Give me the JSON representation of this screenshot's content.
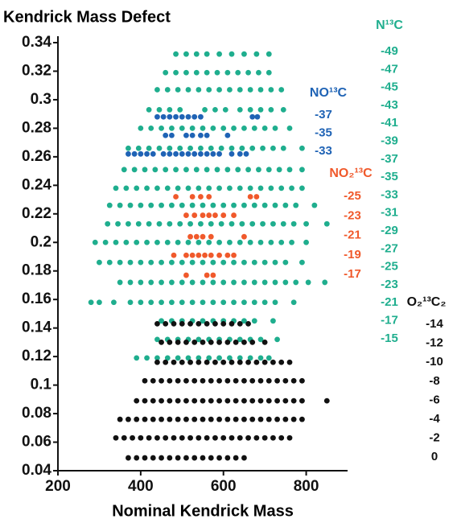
{
  "chart_data": {
    "type": "scatter",
    "title": "Kendrick Mass Defect",
    "x_label": "Nominal Kendrick Mass",
    "xlim": [
      200,
      900
    ],
    "ylim": [
      0.04,
      0.34
    ],
    "xticks": [
      200,
      400,
      600,
      800
    ],
    "yticks": [
      0.04,
      0.06,
      0.08,
      0.1,
      0.12,
      0.14,
      0.16,
      0.18,
      0.2,
      0.22,
      0.24,
      0.26,
      0.28,
      0.3,
      0.32,
      0.34
    ],
    "series": [
      {
        "name": "N¹³C",
        "color": "#1fae8e",
        "rows": [
          {
            "y": 0.332,
            "x": [
              485,
              510,
              535,
              560,
              590,
              620,
              650,
              680,
              710
            ]
          },
          {
            "y": 0.319,
            "x": [
              460,
              485,
              510,
              535,
              560,
              585,
              610,
              635,
              660,
              685,
              710
            ]
          },
          {
            "y": 0.307,
            "x": [
              440,
              465,
              490,
              515,
              540,
              565,
              590,
              615,
              640,
              665,
              690,
              715,
              740
            ]
          },
          {
            "y": 0.293,
            "x": [
              420,
              445,
              470,
              495,
              555,
              580,
              605,
              640,
              665,
              690,
              715,
              745
            ]
          },
          {
            "y": 0.28,
            "x": [
              400,
              425,
              450,
              475,
              500,
              525,
              550,
              575,
              600,
              625,
              650,
              675,
              700,
              725,
              760
            ]
          },
          {
            "y": 0.266,
            "x": [
              370,
              395,
              420,
              445,
              470,
              495,
              520,
              545,
              570,
              595,
              620,
              645,
              670,
              695,
              720,
              745,
              790
            ]
          },
          {
            "y": 0.251,
            "x": [
              360,
              385,
              410,
              435,
              460,
              485,
              510,
              535,
              560,
              585,
              610,
              635,
              660,
              685,
              710,
              735,
              760,
              790
            ]
          },
          {
            "y": 0.238,
            "x": [
              340,
              365,
              390,
              415,
              440,
              465,
              490,
              515,
              540,
              565,
              590,
              615,
              640,
              665,
              690,
              715,
              740,
              765,
              790
            ]
          },
          {
            "y": 0.226,
            "x": [
              325,
              350,
              375,
              400,
              425,
              450,
              475,
              500,
              525,
              550,
              575,
              600,
              625,
              650,
              675,
              700,
              725,
              750,
              775,
              820
            ]
          },
          {
            "y": 0.213,
            "x": [
              320,
              345,
              370,
              395,
              420,
              445,
              470,
              495,
              520,
              545,
              570,
              595,
              620,
              645,
              670,
              695,
              720,
              745,
              770,
              800,
              850
            ]
          },
          {
            "y": 0.2,
            "x": [
              290,
              315,
              340,
              365,
              390,
              415,
              440,
              465,
              490,
              515,
              540,
              565,
              590,
              615,
              640,
              665,
              690,
              715,
              740,
              765,
              800
            ]
          },
          {
            "y": 0.186,
            "x": [
              300,
              325,
              350,
              375,
              400,
              425,
              450,
              475,
              500,
              525,
              550,
              575,
              600,
              625,
              650,
              675,
              700,
              725,
              750,
              790
            ]
          },
          {
            "y": 0.172,
            "x": [
              350,
              375,
              400,
              425,
              450,
              475,
              500,
              525,
              550,
              575,
              600,
              625,
              650,
              675,
              700,
              725,
              750,
              775,
              805,
              845
            ]
          },
          {
            "y": 0.158,
            "x": [
              280,
              300,
              335,
              375,
              400,
              425,
              450,
              475,
              500,
              525,
              550,
              575,
              600,
              625,
              650,
              675,
              700,
              725,
              770
            ]
          },
          {
            "y": 0.145,
            "x": [
              450,
              475,
              500,
              525,
              550,
              575,
              600,
              625,
              650,
              675,
              720
            ]
          },
          {
            "y": 0.132,
            "x": [
              440,
              465,
              490,
              515,
              540,
              565,
              590,
              615,
              640,
              665,
              690,
              730
            ]
          },
          {
            "y": 0.119,
            "x": [
              390,
              415,
              440,
              465,
              490,
              515,
              540,
              565,
              590,
              615,
              640,
              665,
              690,
              710
            ]
          }
        ]
      },
      {
        "name": "NO¹³C",
        "color": "#1f63b5",
        "rows": [
          {
            "y": 0.288,
            "x": [
              440,
              455,
              470,
              485,
              500,
              515,
              530,
              545,
              670,
              682
            ]
          },
          {
            "y": 0.275,
            "x": [
              460,
              475,
              510,
              525,
              545,
              560,
              610
            ]
          },
          {
            "y": 0.262,
            "x": [
              370,
              385,
              400,
              415,
              430,
              455,
              470,
              485,
              500,
              515,
              530,
              545,
              560,
              575,
              590,
              620,
              640,
              655
            ]
          }
        ]
      },
      {
        "name": "NO₂¹³C",
        "color": "#f0592b",
        "rows": [
          {
            "y": 0.232,
            "x": [
              485,
              525,
              545,
              565,
              665,
              680
            ]
          },
          {
            "y": 0.219,
            "x": [
              510,
              530,
              550,
              565,
              580,
              600,
              625
            ]
          },
          {
            "y": 0.204,
            "x": [
              520,
              535,
              550,
              570,
              650
            ]
          },
          {
            "y": 0.191,
            "x": [
              480,
              510,
              525,
              540,
              555,
              570,
              590,
              610,
              625
            ]
          },
          {
            "y": 0.177,
            "x": [
              510,
              560,
              575
            ]
          }
        ]
      },
      {
        "name": "O₂¹³C₂",
        "color": "#111111",
        "rows": [
          {
            "y": 0.143,
            "x": [
              440,
              460,
              480,
              500,
              520,
              540,
              560,
              580,
              600,
              620,
              640,
              660
            ]
          },
          {
            "y": 0.13,
            "x": [
              450,
              470,
              490,
              510,
              530,
              550,
              570,
              590,
              610,
              630,
              650,
              670,
              700
            ]
          },
          {
            "y": 0.116,
            "x": [
              440,
              460,
              480,
              500,
              520,
              540,
              560,
              580,
              600,
              620,
              640,
              660,
              680,
              700,
              720,
              740,
              760
            ]
          },
          {
            "y": 0.103,
            "x": [
              410,
              430,
              450,
              470,
              490,
              510,
              530,
              550,
              570,
              590,
              610,
              630,
              650,
              670,
              690,
              710,
              730,
              750,
              770,
              790
            ]
          },
          {
            "y": 0.089,
            "x": [
              390,
              410,
              430,
              450,
              470,
              490,
              510,
              530,
              550,
              570,
              590,
              610,
              630,
              650,
              670,
              690,
              710,
              730,
              750,
              770,
              790,
              850
            ]
          },
          {
            "y": 0.076,
            "x": [
              350,
              370,
              390,
              410,
              430,
              450,
              470,
              490,
              510,
              530,
              550,
              570,
              590,
              610,
              630,
              650,
              670,
              690,
              710,
              730,
              750,
              770,
              790
            ]
          },
          {
            "y": 0.063,
            "x": [
              340,
              360,
              380,
              400,
              420,
              440,
              460,
              480,
              500,
              520,
              540,
              560,
              580,
              600,
              620,
              640,
              660,
              680,
              700,
              720,
              740,
              760
            ]
          },
          {
            "y": 0.049,
            "x": [
              370,
              390,
              410,
              430,
              450,
              470,
              490,
              510,
              530,
              550,
              570,
              590,
              610,
              630,
              650
            ]
          }
        ]
      }
    ],
    "annotations": [
      {
        "series": 0,
        "labels": [
          -49,
          -47,
          -45,
          -43,
          -41,
          -39,
          -37,
          -35,
          -33,
          -31,
          -29,
          -27,
          -25,
          -23,
          -21,
          -17,
          -15
        ]
      },
      {
        "series": 1,
        "labels": [
          -37,
          -35,
          -33
        ]
      },
      {
        "series": 2,
        "labels": [
          -25,
          -23,
          -21,
          -19,
          -17
        ]
      },
      {
        "series": 3,
        "labels": [
          -14,
          -12,
          -10,
          -8,
          -6,
          -4,
          -2,
          0
        ]
      }
    ]
  }
}
